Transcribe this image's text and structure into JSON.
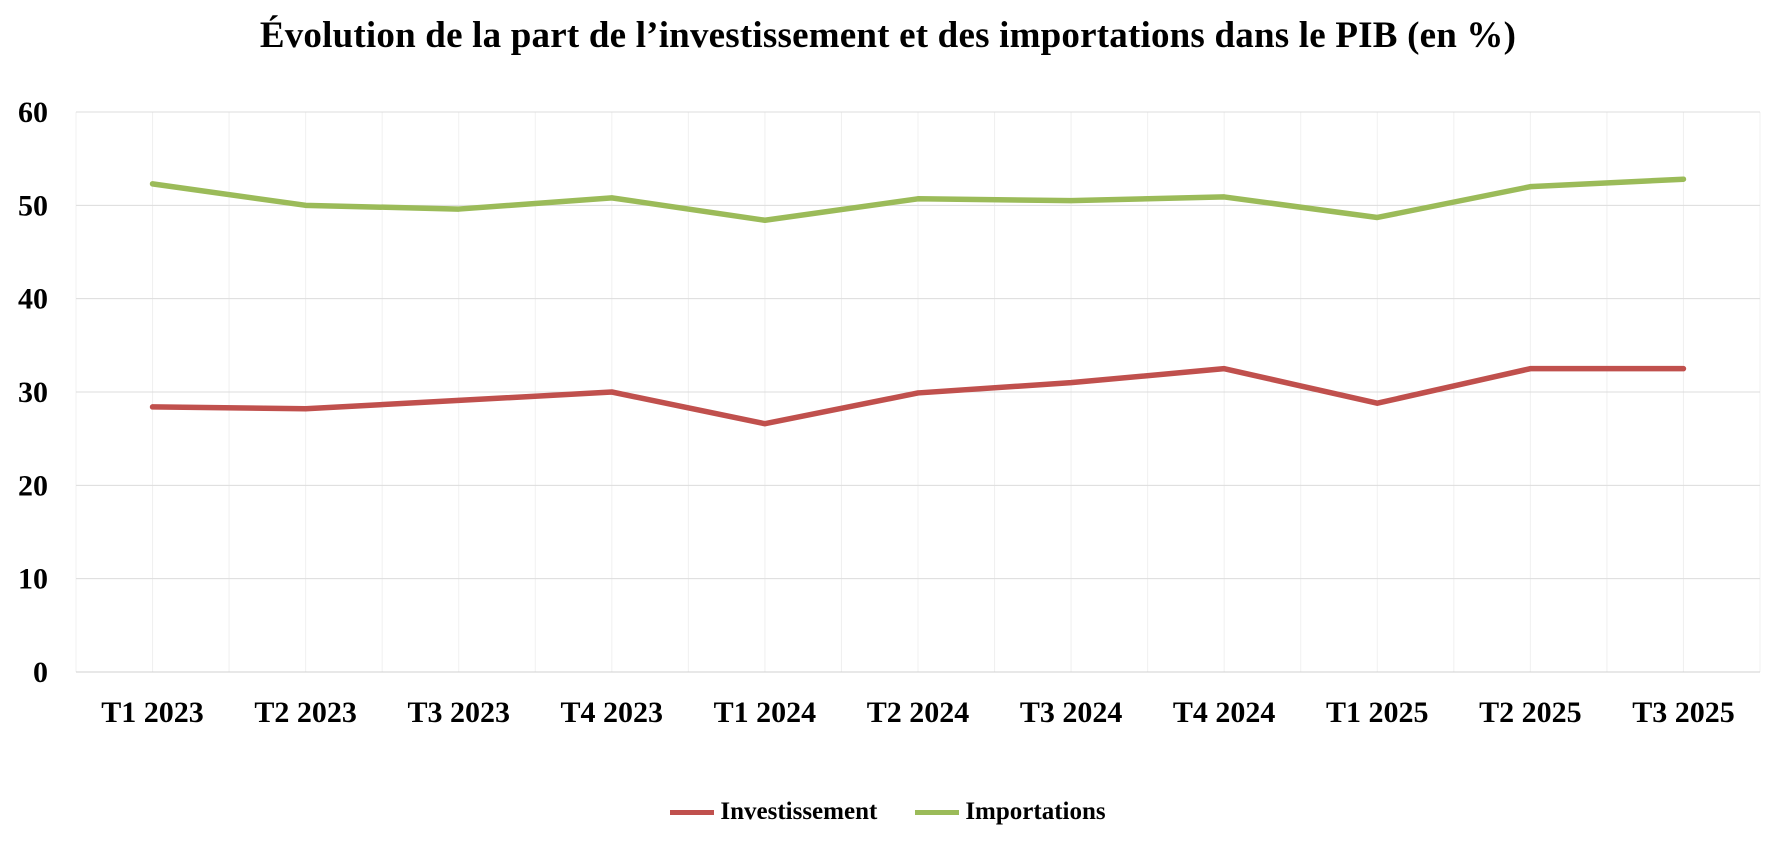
{
  "chart_data": {
    "type": "line",
    "title": "Évolution de la part de l’investissement et des importations dans le PIB (en %)",
    "xlabel": "",
    "ylabel": "",
    "categories": [
      "T1 2023",
      "T2 2023",
      "T3 2023",
      "T4 2023",
      "T1 2024",
      "T2 2024",
      "T3 2024",
      "T4 2024",
      "T1 2025",
      "T2 2025",
      "T3 2025"
    ],
    "ylim": [
      0,
      60
    ],
    "yticks": [
      "0",
      "10",
      "20",
      "30",
      "40",
      "50",
      "60"
    ],
    "grid": true,
    "legend_position": "bottom",
    "series": [
      {
        "name": "Investissement",
        "color": "#C0504D",
        "values": [
          28.4,
          28.2,
          29.1,
          30.0,
          26.6,
          29.9,
          31.0,
          32.5,
          28.8,
          32.5,
          32.5
        ]
      },
      {
        "name": "Importations",
        "color": "#9BBB59",
        "values": [
          52.3,
          50.0,
          49.6,
          50.8,
          48.4,
          50.7,
          50.5,
          50.9,
          48.7,
          52.0,
          52.8
        ]
      }
    ]
  }
}
